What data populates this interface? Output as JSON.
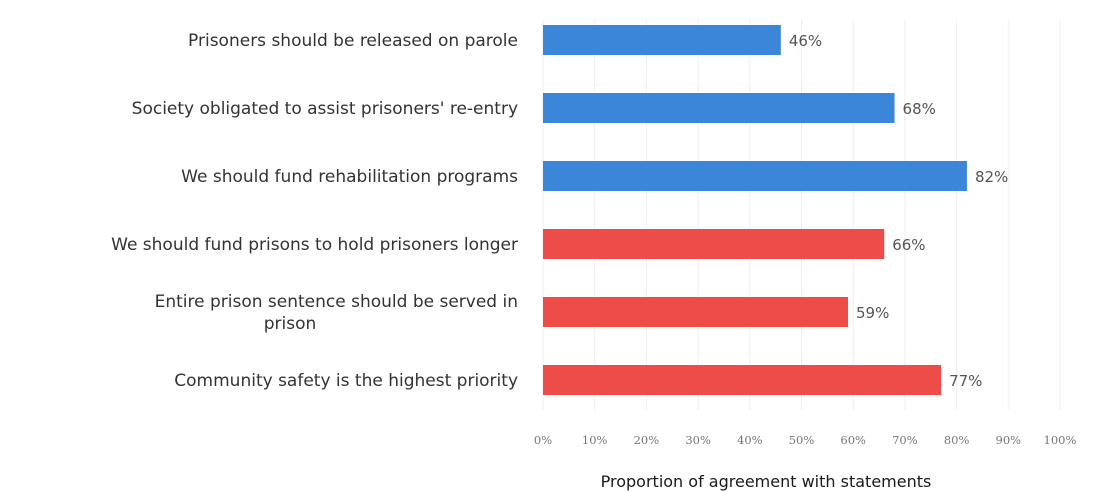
{
  "chart_data": {
    "type": "bar",
    "orientation": "horizontal",
    "categories": [
      [
        "Prisoners should be released on parole"
      ],
      [
        "Society obligated to assist prisoners' re-entry"
      ],
      [
        "We should fund rehabilitation programs"
      ],
      [
        "We should fund prisons to hold prisoners longer"
      ],
      [
        "Entire prison sentence should be served in",
        "prison"
      ],
      [
        "Community safety is the highest priority"
      ]
    ],
    "values": [
      46,
      68,
      82,
      66,
      59,
      77
    ],
    "value_labels": [
      "46%",
      "68%",
      "82%",
      "66%",
      "59%",
      "77%"
    ],
    "bar_colors": [
      "#3b86d8",
      "#3b86d8",
      "#3b86d8",
      "#ee4c48",
      "#ee4c48",
      "#ee4c48"
    ],
    "xlim": [
      0,
      100
    ],
    "xticks": [
      "0%",
      "10%",
      "20%",
      "30%",
      "40%",
      "50%",
      "60%",
      "70%",
      "80%",
      "90%",
      "100%"
    ],
    "xlabel": "Proportion of agreement with statements",
    "grid": true
  }
}
